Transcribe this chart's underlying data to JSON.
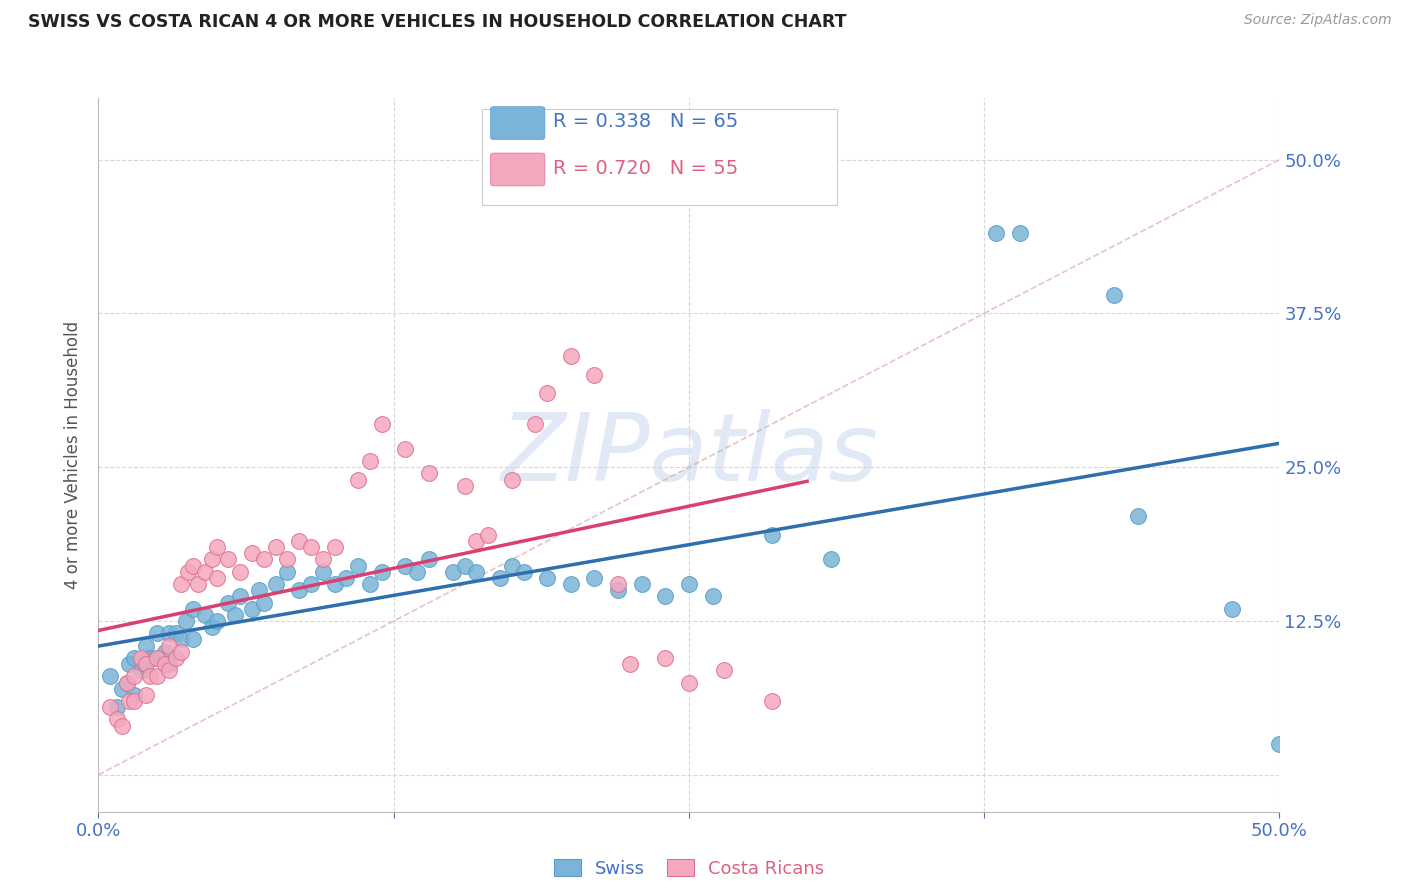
{
  "title": "SWISS VS COSTA RICAN 4 OR MORE VEHICLES IN HOUSEHOLD CORRELATION CHART",
  "source": "Source: ZipAtlas.com",
  "ylabel": "4 or more Vehicles in Household",
  "xlim": [
    0.0,
    0.5
  ],
  "ylim": [
    -0.03,
    0.55
  ],
  "yticks": [
    0.0,
    0.125,
    0.25,
    0.375,
    0.5
  ],
  "ytick_labels_right": [
    "",
    "12.5%",
    "25.0%",
    "37.5%",
    "50.0%"
  ],
  "xticks": [
    0.0,
    0.125,
    0.25,
    0.375,
    0.5
  ],
  "xtick_labels": [
    "0.0%",
    "",
    "",
    "",
    "50.0%"
  ],
  "swiss_color": "#7ab4d8",
  "swiss_edge_color": "#5a9ec8",
  "costa_color": "#f4a8be",
  "costa_edge_color": "#e07090",
  "trend_swiss_color": "#2e6fad",
  "trend_costa_color": "#d94070",
  "diag_color": "#cccccc",
  "swiss_R": 0.338,
  "swiss_N": 65,
  "costa_R": 0.72,
  "costa_N": 55,
  "legend_swiss_label": "Swiss",
  "legend_costa_label": "Costa Ricans",
  "watermark": "ZIPatlas",
  "background_color": "#ffffff",
  "grid_color": "#d8d8d8",
  "swiss_points": [
    [
      0.005,
      0.08
    ],
    [
      0.008,
      0.055
    ],
    [
      0.01,
      0.07
    ],
    [
      0.012,
      0.075
    ],
    [
      0.013,
      0.09
    ],
    [
      0.015,
      0.095
    ],
    [
      0.015,
      0.065
    ],
    [
      0.018,
      0.085
    ],
    [
      0.02,
      0.105
    ],
    [
      0.02,
      0.09
    ],
    [
      0.022,
      0.095
    ],
    [
      0.025,
      0.115
    ],
    [
      0.025,
      0.095
    ],
    [
      0.028,
      0.1
    ],
    [
      0.03,
      0.115
    ],
    [
      0.03,
      0.09
    ],
    [
      0.033,
      0.115
    ],
    [
      0.035,
      0.11
    ],
    [
      0.037,
      0.125
    ],
    [
      0.04,
      0.135
    ],
    [
      0.04,
      0.11
    ],
    [
      0.045,
      0.13
    ],
    [
      0.048,
      0.12
    ],
    [
      0.05,
      0.125
    ],
    [
      0.055,
      0.14
    ],
    [
      0.058,
      0.13
    ],
    [
      0.06,
      0.145
    ],
    [
      0.065,
      0.135
    ],
    [
      0.068,
      0.15
    ],
    [
      0.07,
      0.14
    ],
    [
      0.075,
      0.155
    ],
    [
      0.08,
      0.165
    ],
    [
      0.085,
      0.15
    ],
    [
      0.09,
      0.155
    ],
    [
      0.095,
      0.165
    ],
    [
      0.1,
      0.155
    ],
    [
      0.105,
      0.16
    ],
    [
      0.11,
      0.17
    ],
    [
      0.115,
      0.155
    ],
    [
      0.12,
      0.165
    ],
    [
      0.13,
      0.17
    ],
    [
      0.135,
      0.165
    ],
    [
      0.14,
      0.175
    ],
    [
      0.15,
      0.165
    ],
    [
      0.155,
      0.17
    ],
    [
      0.16,
      0.165
    ],
    [
      0.17,
      0.16
    ],
    [
      0.175,
      0.17
    ],
    [
      0.18,
      0.165
    ],
    [
      0.19,
      0.16
    ],
    [
      0.2,
      0.155
    ],
    [
      0.21,
      0.16
    ],
    [
      0.22,
      0.15
    ],
    [
      0.23,
      0.155
    ],
    [
      0.24,
      0.145
    ],
    [
      0.25,
      0.155
    ],
    [
      0.26,
      0.145
    ],
    [
      0.285,
      0.195
    ],
    [
      0.31,
      0.175
    ],
    [
      0.38,
      0.44
    ],
    [
      0.39,
      0.44
    ],
    [
      0.43,
      0.39
    ],
    [
      0.44,
      0.21
    ],
    [
      0.48,
      0.135
    ],
    [
      0.5,
      0.025
    ]
  ],
  "costa_points": [
    [
      0.005,
      0.055
    ],
    [
      0.008,
      0.045
    ],
    [
      0.01,
      0.04
    ],
    [
      0.012,
      0.075
    ],
    [
      0.013,
      0.06
    ],
    [
      0.015,
      0.08
    ],
    [
      0.015,
      0.06
    ],
    [
      0.018,
      0.095
    ],
    [
      0.02,
      0.09
    ],
    [
      0.02,
      0.065
    ],
    [
      0.022,
      0.08
    ],
    [
      0.025,
      0.095
    ],
    [
      0.025,
      0.08
    ],
    [
      0.028,
      0.09
    ],
    [
      0.03,
      0.105
    ],
    [
      0.03,
      0.085
    ],
    [
      0.033,
      0.095
    ],
    [
      0.035,
      0.1
    ],
    [
      0.035,
      0.155
    ],
    [
      0.038,
      0.165
    ],
    [
      0.04,
      0.17
    ],
    [
      0.042,
      0.155
    ],
    [
      0.045,
      0.165
    ],
    [
      0.048,
      0.175
    ],
    [
      0.05,
      0.185
    ],
    [
      0.05,
      0.16
    ],
    [
      0.055,
      0.175
    ],
    [
      0.06,
      0.165
    ],
    [
      0.065,
      0.18
    ],
    [
      0.07,
      0.175
    ],
    [
      0.075,
      0.185
    ],
    [
      0.08,
      0.175
    ],
    [
      0.085,
      0.19
    ],
    [
      0.09,
      0.185
    ],
    [
      0.095,
      0.175
    ],
    [
      0.1,
      0.185
    ],
    [
      0.11,
      0.24
    ],
    [
      0.115,
      0.255
    ],
    [
      0.12,
      0.285
    ],
    [
      0.13,
      0.265
    ],
    [
      0.14,
      0.245
    ],
    [
      0.155,
      0.235
    ],
    [
      0.16,
      0.19
    ],
    [
      0.165,
      0.195
    ],
    [
      0.175,
      0.24
    ],
    [
      0.185,
      0.285
    ],
    [
      0.19,
      0.31
    ],
    [
      0.2,
      0.34
    ],
    [
      0.21,
      0.325
    ],
    [
      0.22,
      0.155
    ],
    [
      0.225,
      0.09
    ],
    [
      0.24,
      0.095
    ],
    [
      0.25,
      0.075
    ],
    [
      0.265,
      0.085
    ],
    [
      0.285,
      0.06
    ]
  ]
}
